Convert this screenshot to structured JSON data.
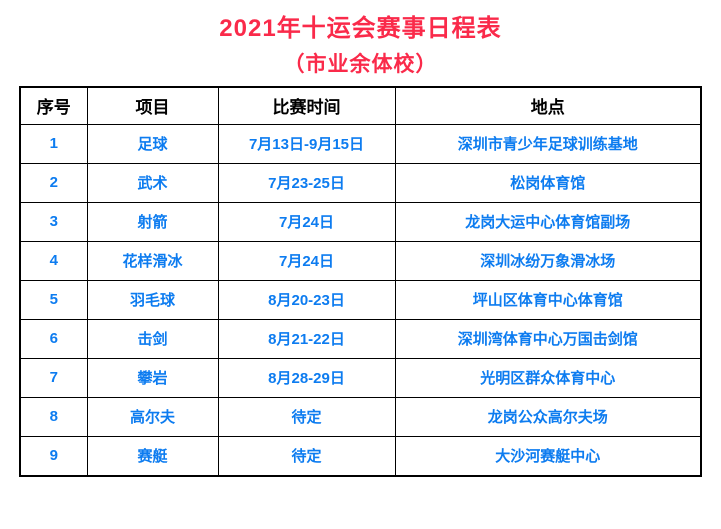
{
  "page": {
    "title": "2021年十运会赛事日程表",
    "subtitle": "（市业余体校）"
  },
  "colors": {
    "title_red": "#fa2a4a",
    "data_blue": "#0d7cf0",
    "border_black": "#000000"
  },
  "table": {
    "headers": [
      "序号",
      "项目",
      "比赛时间",
      "地点"
    ],
    "rows": [
      [
        "1",
        "足球",
        "7月13日-9月15日",
        "深圳市青少年足球训练基地"
      ],
      [
        "2",
        "武术",
        "7月23-25日",
        "松岗体育馆"
      ],
      [
        "3",
        "射箭",
        "7月24日",
        "龙岗大运中心体育馆副场"
      ],
      [
        "4",
        "花样滑冰",
        "7月24日",
        "深圳冰纷万象滑冰场"
      ],
      [
        "5",
        "羽毛球",
        "8月20-23日",
        "坪山区体育中心体育馆"
      ],
      [
        "6",
        "击剑",
        "8月21-22日",
        "深圳湾体育中心万国击剑馆"
      ],
      [
        "7",
        "攀岩",
        "8月28-29日",
        "光明区群众体育中心"
      ],
      [
        "8",
        "高尔夫",
        "待定",
        "龙岗公众高尔夫场"
      ],
      [
        "9",
        "赛艇",
        "待定",
        "大沙河赛艇中心"
      ]
    ]
  }
}
